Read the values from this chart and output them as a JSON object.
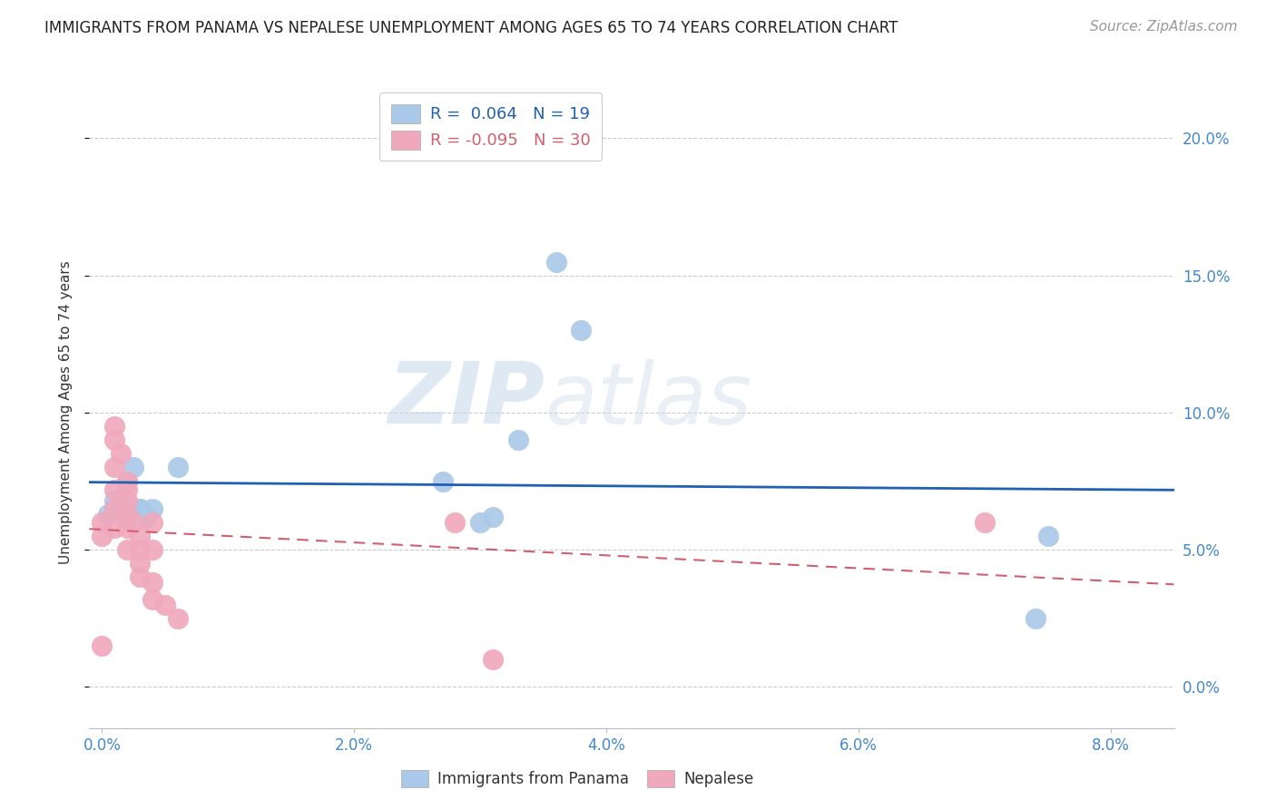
{
  "title": "IMMIGRANTS FROM PANAMA VS NEPALESE UNEMPLOYMENT AMONG AGES 65 TO 74 YEARS CORRELATION CHART",
  "source": "Source: ZipAtlas.com",
  "ylabel": "Unemployment Among Ages 65 to 74 years",
  "xlim": [
    -0.001,
    0.085
  ],
  "ylim": [
    -0.015,
    0.215
  ],
  "xlabel_tick_vals": [
    0.0,
    0.02,
    0.04,
    0.06,
    0.08
  ],
  "xlabel_tick_labels": [
    "0.0%",
    "2.0%",
    "4.0%",
    "6.0%",
    "8.0%"
  ],
  "ylabel_tick_vals": [
    0.0,
    0.05,
    0.1,
    0.15,
    0.2
  ],
  "ylabel_tick_labels": [
    "0.0%",
    "5.0%",
    "10.0%",
    "15.0%",
    "20.0%"
  ],
  "blue_R": "0.064",
  "blue_N": "19",
  "pink_R": "-0.095",
  "pink_N": "30",
  "blue_color": "#aac8e8",
  "pink_color": "#f0a8bc",
  "blue_line_color": "#2060b0",
  "pink_line_color": "#d06070",
  "watermark_zip": "ZIP",
  "watermark_atlas": "atlas",
  "blue_label": "Immigrants from Panama",
  "pink_label": "Nepalese",
  "blue_points_x": [
    0.0005,
    0.001,
    0.001,
    0.002,
    0.002,
    0.0025,
    0.003,
    0.003,
    0.0035,
    0.004,
    0.006,
    0.027,
    0.03,
    0.031,
    0.033,
    0.036,
    0.038,
    0.074,
    0.075
  ],
  "blue_points_y": [
    0.063,
    0.065,
    0.068,
    0.065,
    0.075,
    0.08,
    0.065,
    0.065,
    0.062,
    0.065,
    0.08,
    0.075,
    0.06,
    0.062,
    0.09,
    0.155,
    0.13,
    0.025,
    0.055
  ],
  "pink_points_x": [
    0.0,
    0.0,
    0.0,
    0.001,
    0.001,
    0.001,
    0.001,
    0.001,
    0.001,
    0.0015,
    0.002,
    0.002,
    0.002,
    0.002,
    0.002,
    0.002,
    0.0025,
    0.003,
    0.003,
    0.003,
    0.003,
    0.004,
    0.004,
    0.004,
    0.004,
    0.005,
    0.006,
    0.028,
    0.031,
    0.07
  ],
  "pink_points_y": [
    0.06,
    0.055,
    0.015,
    0.095,
    0.09,
    0.08,
    0.072,
    0.065,
    0.058,
    0.085,
    0.075,
    0.072,
    0.068,
    0.063,
    0.058,
    0.05,
    0.06,
    0.055,
    0.05,
    0.045,
    0.04,
    0.06,
    0.05,
    0.038,
    0.032,
    0.03,
    0.025,
    0.06,
    0.01,
    0.06
  ],
  "tick_color": "#4488cc",
  "title_fontsize": 12,
  "source_fontsize": 11,
  "axis_label_fontsize": 11,
  "tick_fontsize": 12,
  "legend_fontsize": 12
}
